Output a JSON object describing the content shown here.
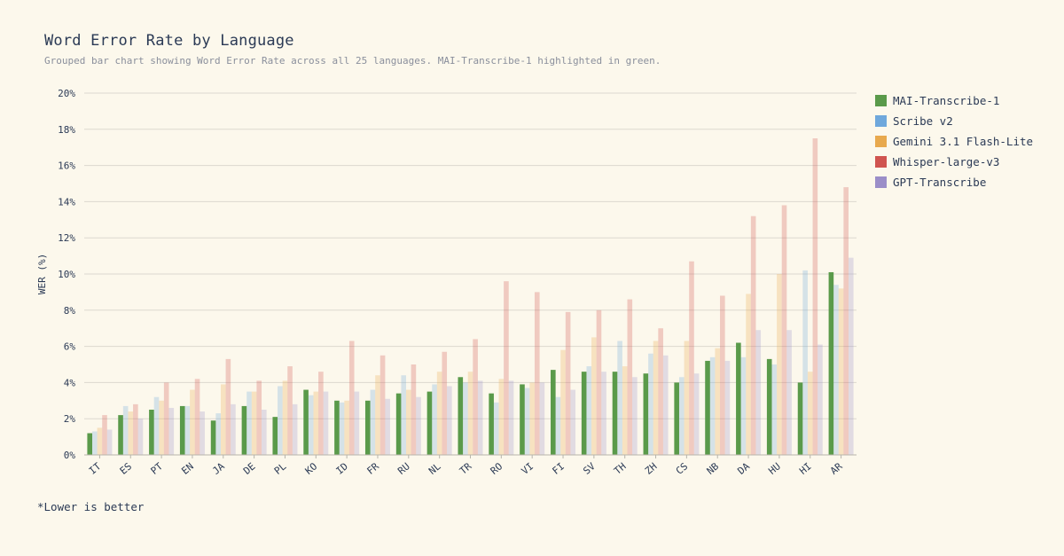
{
  "page": {
    "title": "Word Error Rate by Language",
    "subtitle": "Grouped bar chart showing Word Error Rate across all 25 languages. MAI-Transcribe-1 highlighted in green.",
    "footnote": "*Lower is better"
  },
  "legend": {
    "items": [
      {
        "label": "MAI-Transcribe-1",
        "color": "#5a9a4a"
      },
      {
        "label": "Scribe v2",
        "color": "#6fa8dc"
      },
      {
        "label": "Gemini 3.1 Flash-Lite",
        "color": "#e8a94e"
      },
      {
        "label": "Whisper-large-v3",
        "color": "#d0544f"
      },
      {
        "label": "GPT-Transcribe",
        "color": "#9b8ec8"
      }
    ]
  },
  "chart_data": {
    "type": "bar",
    "title": "Word Error Rate by Language",
    "ylabel": "WER (%)",
    "xlabel": "",
    "ylim": [
      0,
      20
    ],
    "y_ticks": [
      "0%",
      "2%",
      "4%",
      "6%",
      "8%",
      "10%",
      "12%",
      "14%",
      "16%",
      "18%",
      "20%"
    ],
    "grid": true,
    "legend_position": "right",
    "highlight_series": "MAI-Transcribe-1",
    "categories": [
      "IT",
      "ES",
      "PT",
      "EN",
      "JA",
      "DE",
      "PL",
      "KO",
      "ID",
      "FR",
      "RU",
      "NL",
      "TR",
      "RO",
      "VI",
      "FI",
      "SV",
      "TH",
      "ZH",
      "CS",
      "NB",
      "DA",
      "HU",
      "HI",
      "AR"
    ],
    "series": [
      {
        "name": "MAI-Transcribe-1",
        "color": "#5a9a4a",
        "values": [
          1.2,
          2.2,
          2.5,
          2.7,
          1.9,
          2.7,
          2.1,
          3.6,
          3.0,
          3.0,
          3.4,
          3.5,
          4.3,
          3.4,
          3.9,
          4.7,
          4.6,
          4.6,
          4.5,
          4.0,
          5.2,
          6.2,
          5.3,
          4.0,
          10.1
        ]
      },
      {
        "name": "Scribe v2",
        "color": "#6fa8dc",
        "values": [
          1.3,
          2.7,
          3.2,
          2.7,
          2.3,
          3.5,
          3.8,
          3.3,
          2.9,
          3.6,
          4.4,
          3.9,
          4.0,
          2.9,
          3.7,
          3.2,
          4.9,
          6.3,
          5.6,
          4.3,
          5.4,
          5.4,
          5.0,
          10.2,
          9.4
        ]
      },
      {
        "name": "Gemini 3.1 Flash-Lite",
        "color": "#e8a94e",
        "values": [
          1.5,
          2.4,
          3.0,
          3.6,
          3.9,
          3.5,
          4.1,
          3.5,
          3.0,
          4.4,
          3.6,
          4.6,
          4.6,
          4.2,
          4.0,
          5.8,
          6.5,
          4.9,
          6.3,
          6.3,
          5.9,
          8.9,
          10.0,
          4.6,
          9.2
        ]
      },
      {
        "name": "Whisper-large-v3",
        "color": "#d0544f",
        "values": [
          2.2,
          2.8,
          4.0,
          4.2,
          5.3,
          4.1,
          4.9,
          4.6,
          6.3,
          5.5,
          5.0,
          5.7,
          6.4,
          9.6,
          9.0,
          7.9,
          8.0,
          8.6,
          7.0,
          10.7,
          8.8,
          13.2,
          13.8,
          17.5,
          14.8
        ]
      },
      {
        "name": "GPT-Transcribe",
        "color": "#9b8ec8",
        "values": [
          1.4,
          2.0,
          2.6,
          2.4,
          2.8,
          2.5,
          2.8,
          3.5,
          3.5,
          3.1,
          3.2,
          3.8,
          4.1,
          4.1,
          4.0,
          3.6,
          4.6,
          4.3,
          5.5,
          4.5,
          5.2,
          6.9,
          6.9,
          6.1,
          10.9
        ]
      }
    ]
  }
}
